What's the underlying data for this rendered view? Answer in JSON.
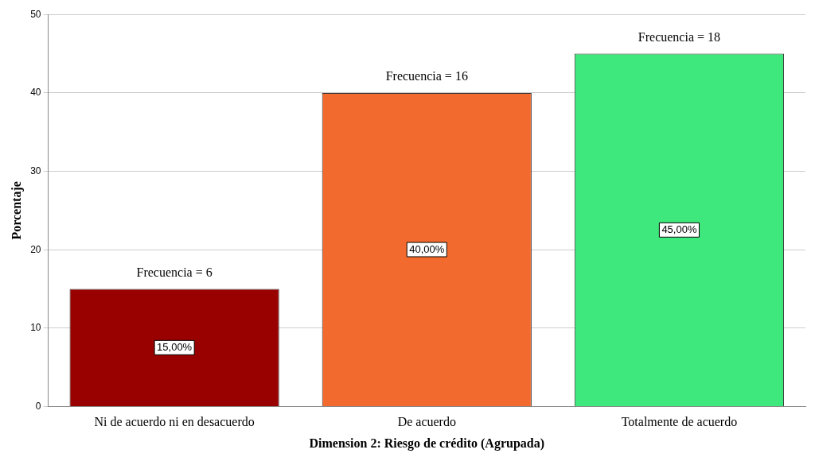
{
  "chart_data": {
    "type": "bar",
    "xlabel": "Dimension 2: Riesgo de crédito (Agrupada)",
    "ylabel": "Porcentaje",
    "categories": [
      "Ni de acuerdo ni en desacuerdo",
      "De acuerdo",
      "Totalmente de acuerdo"
    ],
    "values": [
      15,
      40,
      45
    ],
    "colors": [
      "#990000",
      "#f26a2e",
      "#3fe87c"
    ],
    "value_labels": [
      "15,00%",
      "40,00%",
      "45,00%"
    ],
    "annotations": [
      {
        "text": "Frecuencia = 6",
        "x": "Ni de acuerdo ni en desacuerdo",
        "y": 15
      },
      {
        "text": "Frecuencia = 16",
        "x": "De acuerdo",
        "y": 40
      },
      {
        "text": "Frecuencia = 18",
        "x": "Totalmente de acuerdo",
        "y": 45
      }
    ],
    "ylim": [
      0,
      50
    ],
    "yticks": [
      0,
      10,
      20,
      30,
      40,
      50
    ],
    "grid": "y",
    "legend": false
  }
}
